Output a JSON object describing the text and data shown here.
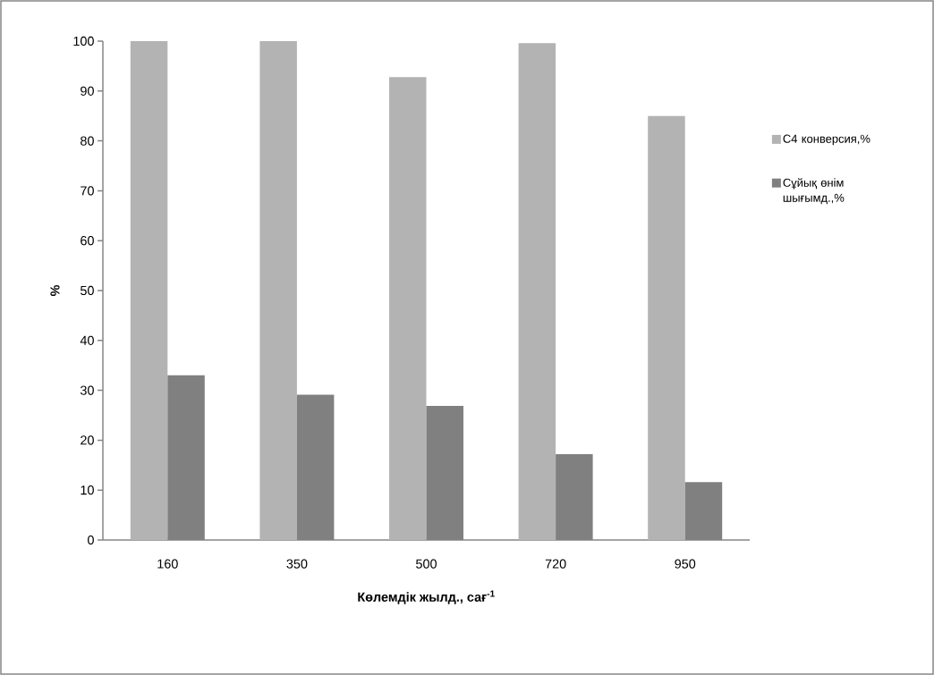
{
  "chart_data": {
    "type": "bar",
    "xlabel": "Көлемдік жылд., сағ$^{-1}$",
    "ylabel": "%",
    "categories": [
      "160",
      "350",
      "500",
      "720",
      "950"
    ],
    "series": [
      {
        "name": "С4 конверсия,%",
        "color": "#b3b3b3",
        "values": [
          100,
          100,
          92.8,
          99.6,
          85.0
        ]
      },
      {
        "name": "Сұйық өнім шығымд.,%",
        "color": "#808080",
        "values": [
          33.0,
          29.1,
          26.9,
          17.2,
          11.6
        ]
      }
    ],
    "ylim": [
      0,
      100
    ],
    "yticks": [
      0,
      10,
      20,
      30,
      40,
      50,
      60,
      70,
      80,
      90,
      100
    ],
    "legend": "right",
    "grid": false
  }
}
